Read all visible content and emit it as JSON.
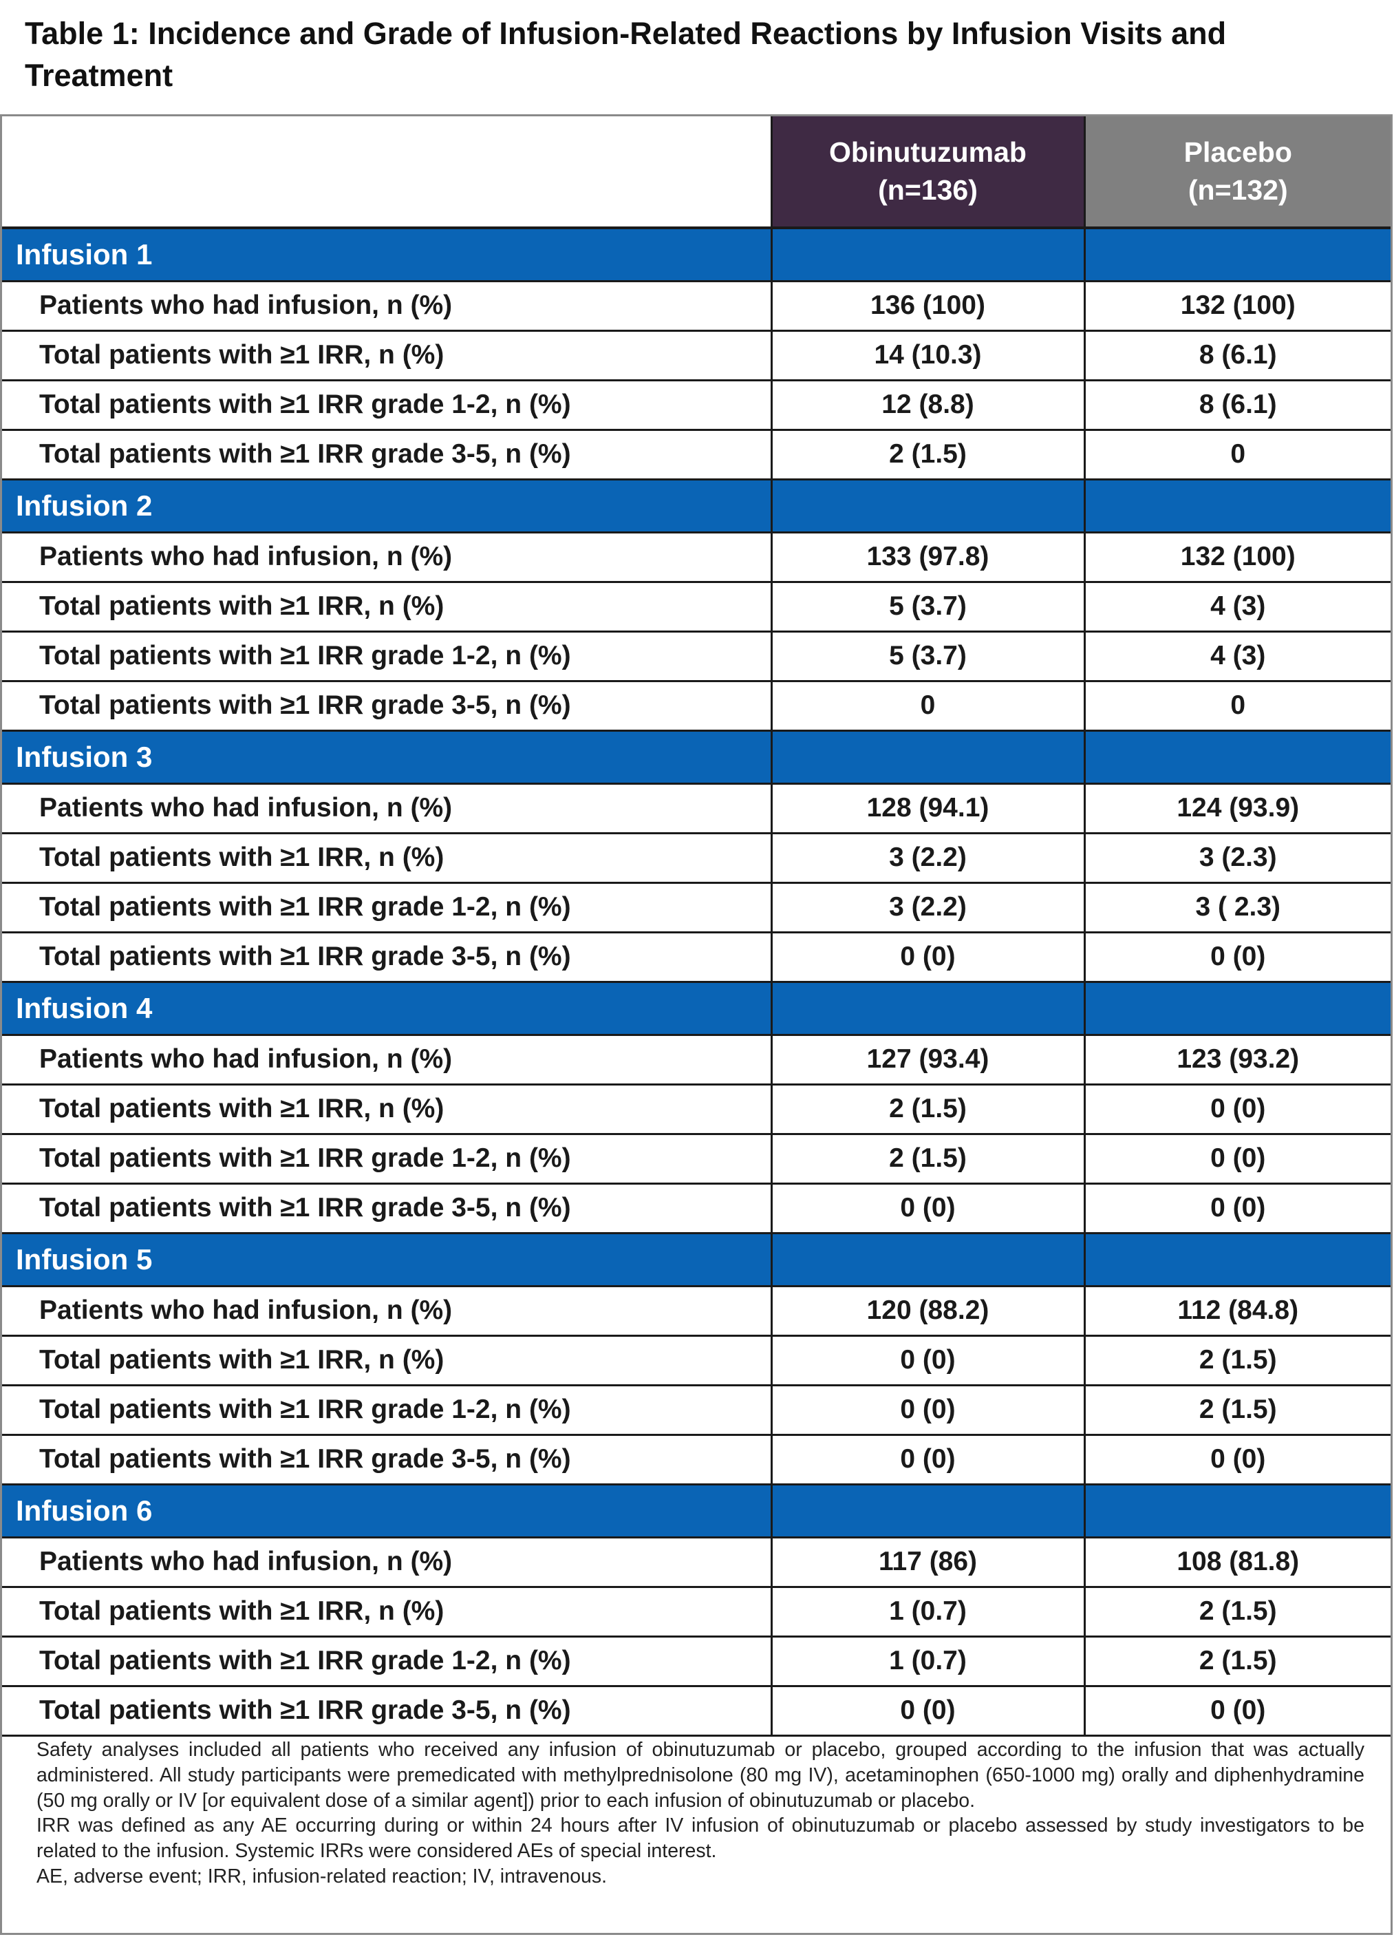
{
  "title": "Table 1: Incidence and Grade of Infusion-Related Reactions by Infusion Visits and Treatment",
  "header": {
    "obinutuzumab_line1": "Obinutuzumab",
    "obinutuzumab_line2": "(n=136)",
    "placebo_line1": "Placebo",
    "placebo_line2": "(n=132)"
  },
  "row_labels": {
    "had_infusion": "Patients who had infusion, n (%)",
    "irr": "Total patients with ≥1 IRR, n (%)",
    "irr_1_2": "Total patients with ≥1 IRR grade 1-2, n (%)",
    "irr_3_5": "Total patients with ≥1 IRR grade 3-5, n (%)"
  },
  "sections": [
    {
      "label": "Infusion 1",
      "rows": [
        [
          "136 (100)",
          "132 (100)"
        ],
        [
          "14 (10.3)",
          "8 (6.1)"
        ],
        [
          "12 (8.8)",
          "8 (6.1)"
        ],
        [
          "2 (1.5)",
          "0"
        ]
      ]
    },
    {
      "label": "Infusion 2",
      "rows": [
        [
          "133 (97.8)",
          "132 (100)"
        ],
        [
          "5 (3.7)",
          "4 (3)"
        ],
        [
          "5 (3.7)",
          "4 (3)"
        ],
        [
          "0",
          "0"
        ]
      ]
    },
    {
      "label": "Infusion 3",
      "rows": [
        [
          "128 (94.1)",
          "124 (93.9)"
        ],
        [
          "3 (2.2)",
          "3 (2.3)"
        ],
        [
          "3 (2.2)",
          "3 ( 2.3)"
        ],
        [
          "0 (0)",
          "0 (0)"
        ]
      ]
    },
    {
      "label": "Infusion 4",
      "rows": [
        [
          "127 (93.4)",
          "123 (93.2)"
        ],
        [
          "2 (1.5)",
          "0 (0)"
        ],
        [
          "2 (1.5)",
          "0 (0)"
        ],
        [
          "0 (0)",
          "0 (0)"
        ]
      ]
    },
    {
      "label": "Infusion 5",
      "rows": [
        [
          "120 (88.2)",
          "112 (84.8)"
        ],
        [
          "0 (0)",
          "2 (1.5)"
        ],
        [
          "0 (0)",
          "2 (1.5)"
        ],
        [
          "0 (0)",
          "0 (0)"
        ]
      ]
    },
    {
      "label": "Infusion 6",
      "rows": [
        [
          "117 (86)",
          "108 (81.8)"
        ],
        [
          "1 (0.7)",
          "2 (1.5)"
        ],
        [
          "1 (0.7)",
          "2 (1.5)"
        ],
        [
          "0 (0)",
          "0 (0)"
        ]
      ]
    }
  ],
  "footnotes": [
    "Safety analyses included all patients who received any infusion of obinutuzumab or placebo, grouped according to the infusion that was actually administered. All study participants were premedicated with methylprednisolone (80 mg IV), acetaminophen (650-1000 mg) orally and diphenhydramine (50 mg orally or IV [or equivalent dose of a similar agent]) prior to each infusion of obinutuzumab or placebo.",
    "IRR was defined as any AE occurring during or within 24 hours after IV infusion of obinutuzumab or placebo assessed by study investigators to be related to the infusion. Systemic IRRs were considered AEs of special interest.",
    "AE, adverse event; IRR, infusion-related reaction; IV, intravenous."
  ]
}
